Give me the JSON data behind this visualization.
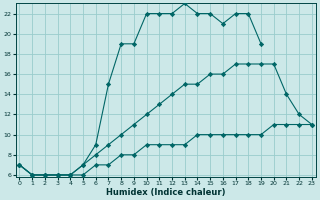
{
  "xlabel": "Humidex (Indice chaleur)",
  "bg_color": "#cce8e8",
  "grid_color": "#99cccc",
  "line_color": "#006666",
  "xlim": [
    0,
    23
  ],
  "ylim": [
    6,
    23
  ],
  "xticks": [
    0,
    1,
    2,
    3,
    4,
    5,
    6,
    7,
    8,
    9,
    10,
    11,
    12,
    13,
    14,
    15,
    16,
    17,
    18,
    19,
    20,
    21,
    22,
    23
  ],
  "yticks": [
    6,
    8,
    10,
    12,
    14,
    16,
    18,
    20,
    22
  ],
  "line1_x": [
    0,
    1,
    2,
    3,
    4,
    5,
    6,
    7,
    8,
    9,
    10,
    11,
    12,
    13,
    14,
    15,
    16,
    17,
    18,
    19,
    20,
    21,
    22,
    23
  ],
  "line1_y": [
    7,
    6,
    6,
    6,
    6,
    6,
    7,
    7,
    8,
    8,
    9,
    9,
    9,
    9,
    10,
    10,
    10,
    10,
    10,
    10,
    11,
    11,
    11,
    11
  ],
  "line2_x": [
    0,
    1,
    2,
    3,
    4,
    5,
    6,
    7,
    8,
    9,
    10,
    11,
    12,
    13,
    14,
    15,
    16,
    17,
    18,
    19,
    20,
    21,
    22,
    23
  ],
  "line2_y": [
    7,
    6,
    6,
    6,
    6,
    7,
    8,
    9,
    10,
    11,
    12,
    13,
    14,
    15,
    15,
    16,
    16,
    17,
    17,
    17,
    17,
    14,
    12,
    11
  ],
  "line3_x": [
    0,
    1,
    2,
    3,
    4,
    5,
    6,
    7,
    8,
    9,
    10,
    11,
    12,
    13,
    14,
    15,
    16,
    17,
    18,
    19
  ],
  "line3_y": [
    7,
    6,
    6,
    6,
    6,
    7,
    9,
    15,
    19,
    19,
    22,
    22,
    22,
    23,
    22,
    22,
    21,
    22,
    22,
    19
  ]
}
